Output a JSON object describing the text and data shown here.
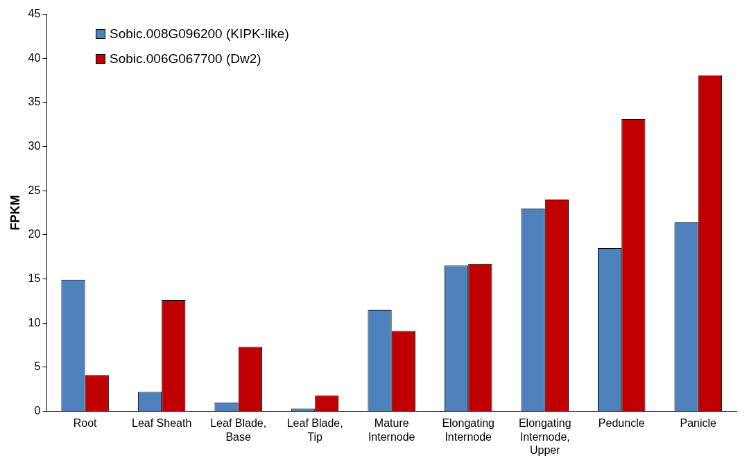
{
  "chart_data": {
    "type": "bar",
    "ylabel": "FPKM",
    "categories": [
      "Root",
      "Leaf Sheath",
      "Leaf Blade, Base",
      "Leaf Blade, Tip",
      "Mature Internode",
      "Elongating Internode",
      "Elongating Internode, Upper",
      "Peduncle",
      "Panicle"
    ],
    "series": [
      {
        "name": "Sobic.008G096200 (KIPK-like)",
        "color": "#4f81bd",
        "values": [
          14.9,
          2.2,
          1.0,
          0.3,
          11.5,
          16.5,
          23.0,
          18.5,
          21.4
        ]
      },
      {
        "name": "Sobic.006G067700 (Dw2)",
        "color": "#c00000",
        "values": [
          4.1,
          12.6,
          7.3,
          1.8,
          9.1,
          16.7,
          24.0,
          33.1,
          38.1
        ]
      }
    ],
    "ylim": [
      0,
      45
    ],
    "yticks": [
      0,
      5,
      10,
      15,
      20,
      25,
      30,
      35,
      40,
      45
    ],
    "grid": false,
    "legend": "top left"
  }
}
